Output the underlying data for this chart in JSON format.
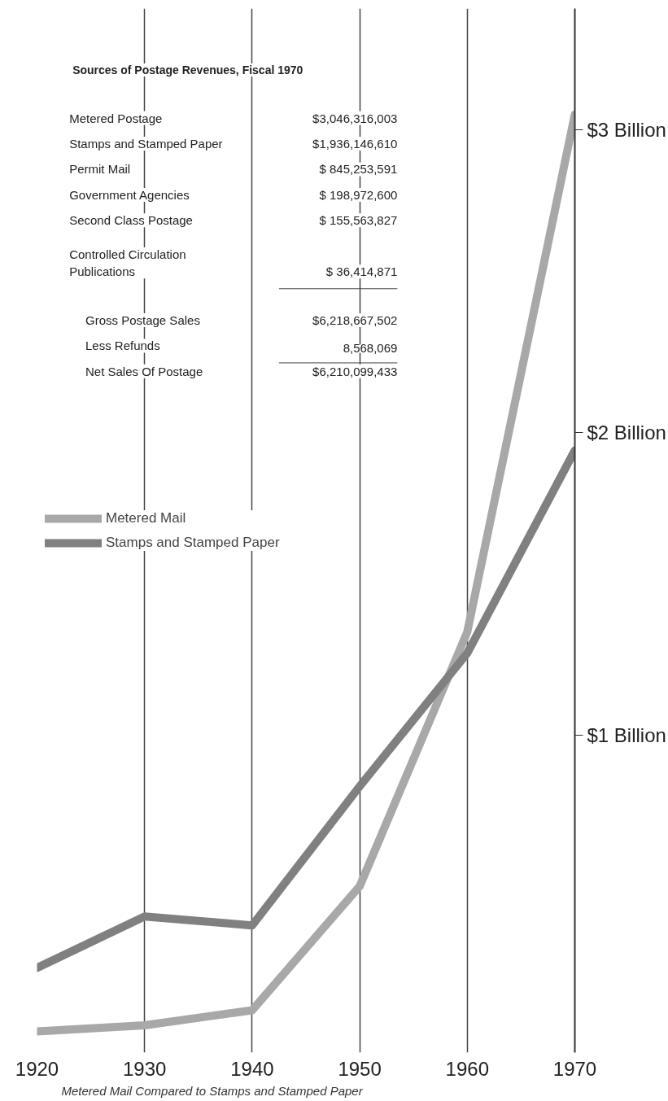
{
  "chart_data": {
    "type": "line",
    "title": "Metered Mail Compared to Stamps and Stamped Paper",
    "x": [
      1920,
      1930,
      1940,
      1950,
      1960,
      1970
    ],
    "series": [
      {
        "name": "Metered Mail",
        "color": "#a8a8a8",
        "values": [
          0.02,
          0.04,
          0.09,
          0.5,
          1.34,
          3.05
        ]
      },
      {
        "name": "Stamps and Stamped Paper",
        "color": "#808080",
        "values": [
          0.23,
          0.4,
          0.37,
          0.83,
          1.27,
          1.94
        ]
      }
    ],
    "xlim": [
      1920,
      1970
    ],
    "ylim": [
      -0.05,
      3.4
    ],
    "xticks": [
      1920,
      1930,
      1940,
      1950,
      1960,
      1970
    ],
    "yticks": [
      {
        "value": 1,
        "label": "$1 Billion"
      },
      {
        "value": 2,
        "label": "$2 Billion"
      },
      {
        "value": 3,
        "label": "$3 Billion"
      }
    ],
    "grid": "x",
    "legend": "left",
    "marker": "none",
    "line_style": "solid",
    "annotations": [
      "Sources of Postage Revenues, Fiscal 1970",
      "Metered Postage",
      "$3,046,316,003",
      "Stamps and Stamped Paper",
      "$1,936,146,610",
      "Permit Mail",
      "$ 845,253,591",
      "Government Agencies",
      "$ 198,972,600",
      "Second Class Postage",
      "$ 155,563,827",
      "Controlled Circulation\n   Publications",
      "$ 36,414,871",
      "Gross Postage Sales",
      "$6,218,667,502",
      "Less Refunds",
      "8,568,069",
      "Net Sales Of Postage",
      "$6,210,099,433"
    ]
  }
}
